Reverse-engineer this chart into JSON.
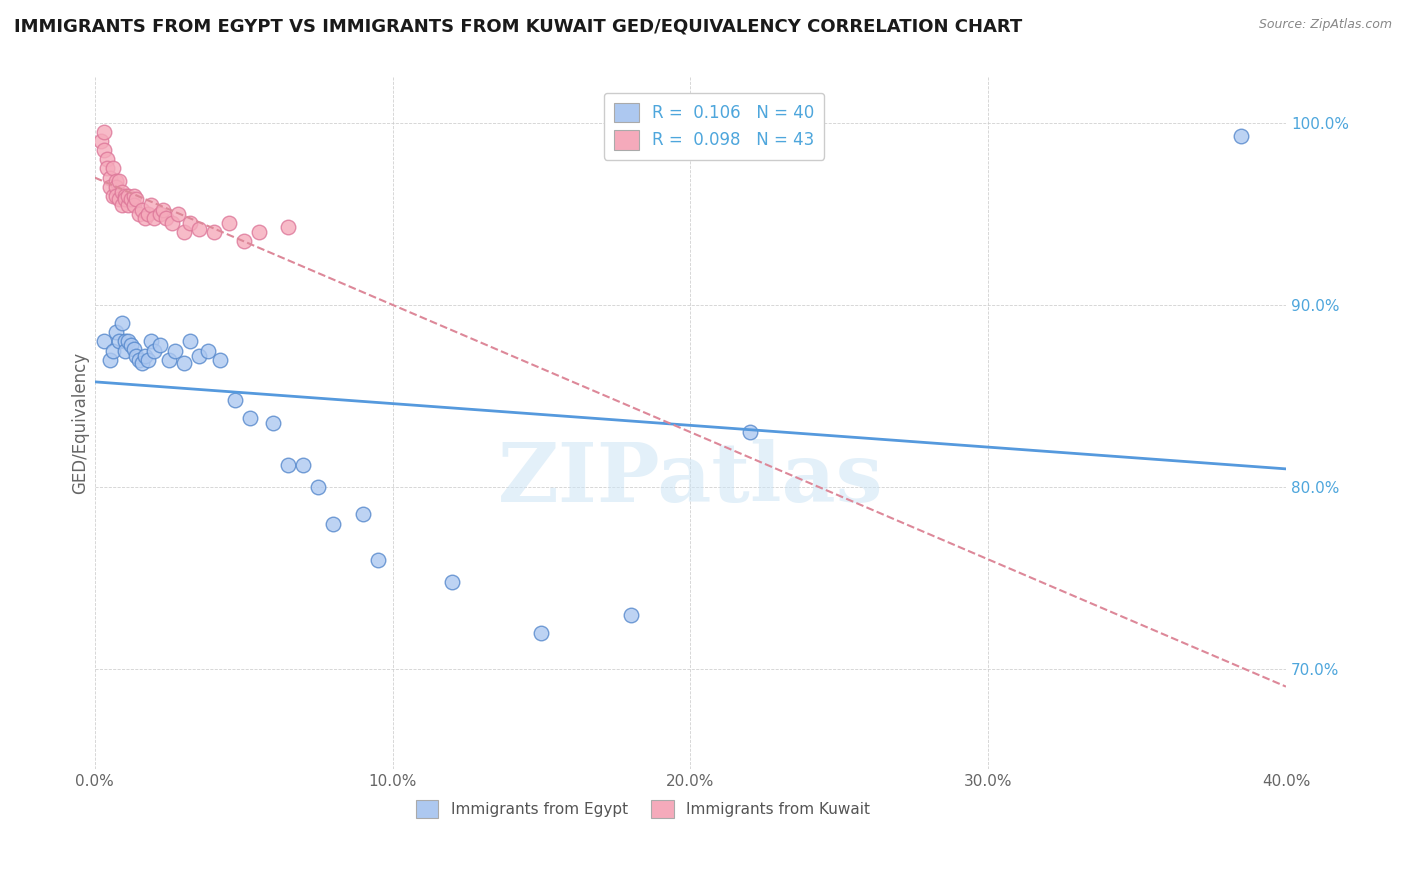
{
  "title": "IMMIGRANTS FROM EGYPT VS IMMIGRANTS FROM KUWAIT GED/EQUIVALENCY CORRELATION CHART",
  "source": "Source: ZipAtlas.com",
  "ylabel": "GED/Equivalency",
  "xlim": [
    0.0,
    0.4
  ],
  "ylim": [
    0.645,
    1.025
  ],
  "xticks": [
    0.0,
    0.1,
    0.2,
    0.3,
    0.4
  ],
  "xtick_labels": [
    "0.0%",
    "10.0%",
    "20.0%",
    "30.0%",
    "40.0%"
  ],
  "yticks": [
    0.7,
    0.8,
    0.9,
    1.0
  ],
  "ytick_labels": [
    "70.0%",
    "80.0%",
    "90.0%",
    "100.0%"
  ],
  "egypt_color": "#adc8f0",
  "kuwait_color": "#f5aabb",
  "egypt_edge": "#5588cc",
  "kuwait_edge": "#dd7799",
  "trend_egypt_color": "#5599dd",
  "trend_kuwait_color": "#dd8899",
  "watermark_text": "ZIPatlas",
  "egypt_x": [
    0.003,
    0.005,
    0.006,
    0.007,
    0.008,
    0.009,
    0.01,
    0.01,
    0.011,
    0.012,
    0.013,
    0.014,
    0.015,
    0.016,
    0.017,
    0.018,
    0.019,
    0.02,
    0.022,
    0.025,
    0.027,
    0.03,
    0.032,
    0.035,
    0.038,
    0.042,
    0.047,
    0.052,
    0.06,
    0.065,
    0.07,
    0.075,
    0.08,
    0.09,
    0.095,
    0.12,
    0.15,
    0.18,
    0.22,
    0.385
  ],
  "egypt_y": [
    0.88,
    0.87,
    0.875,
    0.885,
    0.88,
    0.89,
    0.88,
    0.875,
    0.88,
    0.878,
    0.876,
    0.872,
    0.87,
    0.868,
    0.872,
    0.87,
    0.88,
    0.875,
    0.878,
    0.87,
    0.875,
    0.868,
    0.88,
    0.872,
    0.875,
    0.87,
    0.848,
    0.838,
    0.835,
    0.812,
    0.812,
    0.8,
    0.78,
    0.785,
    0.76,
    0.748,
    0.72,
    0.73,
    0.83,
    0.993
  ],
  "kuwait_x": [
    0.002,
    0.003,
    0.003,
    0.004,
    0.004,
    0.005,
    0.005,
    0.006,
    0.006,
    0.007,
    0.007,
    0.007,
    0.008,
    0.008,
    0.009,
    0.009,
    0.01,
    0.01,
    0.011,
    0.011,
    0.012,
    0.013,
    0.013,
    0.014,
    0.015,
    0.016,
    0.017,
    0.018,
    0.019,
    0.02,
    0.022,
    0.023,
    0.024,
    0.026,
    0.028,
    0.03,
    0.032,
    0.035,
    0.04,
    0.045,
    0.05,
    0.055,
    0.065
  ],
  "kuwait_y": [
    0.99,
    0.985,
    0.995,
    0.98,
    0.975,
    0.97,
    0.965,
    0.975,
    0.96,
    0.968,
    0.965,
    0.96,
    0.968,
    0.958,
    0.962,
    0.955,
    0.96,
    0.958,
    0.955,
    0.96,
    0.958,
    0.96,
    0.955,
    0.958,
    0.95,
    0.952,
    0.948,
    0.95,
    0.955,
    0.948,
    0.95,
    0.952,
    0.948,
    0.945,
    0.95,
    0.94,
    0.945,
    0.942,
    0.94,
    0.945,
    0.935,
    0.94,
    0.943
  ]
}
